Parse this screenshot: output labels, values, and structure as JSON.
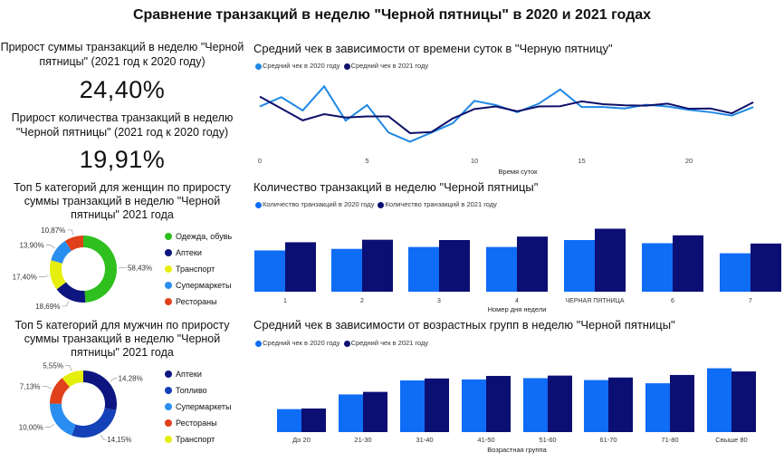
{
  "title": "Сравнение транзакций в неделю \"Черной пятницы\" в 2020 и 2021 годах",
  "kpi": [
    {
      "label": "Прирост суммы транзакций в неделю \"Черной пятницы\" (2021 год к 2020 году)",
      "value": "24,40%"
    },
    {
      "label": "Прирост количества транзакций в неделю \"Черной пятницы\" (2021 год к 2020 году)",
      "value": "19,91%"
    }
  ],
  "colors": {
    "y2020": "#0f6cf5",
    "y2021": "#0b0e72",
    "line2020": "#1e88e5",
    "line2021": "#0e106a"
  },
  "chart_data": [
    {
      "type": "line",
      "title": "Средний чек в зависимости от времени суток в \"Черную пятницу\"",
      "xlabel": "Время суток",
      "ylabel": "",
      "x": [
        0,
        1,
        2,
        3,
        4,
        5,
        6,
        7,
        8,
        9,
        10,
        11,
        12,
        13,
        14,
        15,
        16,
        17,
        18,
        19,
        20,
        21,
        22,
        23
      ],
      "xticks": [
        "0",
        "5",
        "10",
        "15",
        "20"
      ],
      "series": [
        {
          "name": "Средний чек в 2020 году",
          "values": [
            162,
            195,
            148,
            233,
            112,
            167,
            70,
            38,
            70,
            103,
            182,
            167,
            142,
            172,
            222,
            160,
            160,
            155,
            168,
            162,
            150,
            142,
            130,
            160
          ]
        },
        {
          "name": "Средний чек в 2021 году",
          "values": [
            197,
            155,
            113,
            135,
            123,
            127,
            127,
            68,
            72,
            120,
            153,
            162,
            145,
            162,
            163,
            180,
            170,
            166,
            165,
            172,
            154,
            155,
            138,
            177
          ]
        }
      ]
    },
    {
      "type": "bar",
      "title": "Количество транзакций в неделю \"Черной пятницы\"",
      "xlabel": "Номер дня недели",
      "ylabel": "",
      "categories": [
        "1",
        "2",
        "3",
        "4",
        "ЧЕРНАЯ ПЯТНИЦА",
        "6",
        "7"
      ],
      "series": [
        {
          "name": "Количество транзакций в 2020 году",
          "values": [
            131,
            136,
            142,
            142,
            164,
            154,
            122
          ]
        },
        {
          "name": "Количество транзакций в 2021 году",
          "values": [
            157,
            165,
            164,
            175,
            200,
            179,
            153
          ]
        }
      ]
    },
    {
      "type": "bar",
      "title": "Средний чек в зависимости от возрастных групп в неделю \"Черной пятницы\"",
      "xlabel": "Возрастная группа",
      "ylabel": "",
      "categories": [
        "До 20",
        "21-30",
        "31-40",
        "41-50",
        "51-60",
        "61-70",
        "71-80",
        "Свыше 80"
      ],
      "series": [
        {
          "name": "Средний чек в 2020 году",
          "values": [
            72,
            118,
            162,
            165,
            169,
            163,
            153,
            200
          ]
        },
        {
          "name": "Средний чек в 2021 году",
          "values": [
            74,
            126,
            168,
            176,
            177,
            171,
            179,
            190
          ]
        }
      ]
    },
    {
      "type": "pie",
      "title": "Топ 5 категорий для женщин по приросту суммы транзакций в неделю \"Черной пятницы\" 2021 года",
      "slices": [
        {
          "name": "Одежда, обувь",
          "value": 58.43,
          "label": "58,43%",
          "color": "#2fbf1f"
        },
        {
          "name": "Аптеки",
          "value": 18.69,
          "label": "18,69%",
          "color": "#0d1580"
        },
        {
          "name": "Транспорт",
          "value": 17.4,
          "label": "17,40%",
          "color": "#e6ef0c"
        },
        {
          "name": "Супермаркеты",
          "value": 13.9,
          "label": "13,90%",
          "color": "#2a8ef0"
        },
        {
          "name": "Рестораны",
          "value": 10.87,
          "label": "10,87%",
          "color": "#e0401a"
        }
      ]
    },
    {
      "type": "pie",
      "title": "Топ 5 категорий для мужчин по приросту суммы транзакций в неделю \"Черной пятницы\" 2021 года",
      "slices": [
        {
          "name": "Аптеки",
          "value": 14.28,
          "label": "14,28%",
          "color": "#0d1580"
        },
        {
          "name": "Топливо",
          "value": 14.15,
          "label": "14,15%",
          "color": "#1440b8"
        },
        {
          "name": "Супермаркеты",
          "value": 10.0,
          "label": "10,00%",
          "color": "#2a8ef0"
        },
        {
          "name": "Рестораны",
          "value": 7.13,
          "label": "7,13%",
          "color": "#e0401a"
        },
        {
          "name": "Транспорт",
          "value": 5.55,
          "label": "5,55%",
          "color": "#e6ef0c"
        }
      ]
    }
  ]
}
